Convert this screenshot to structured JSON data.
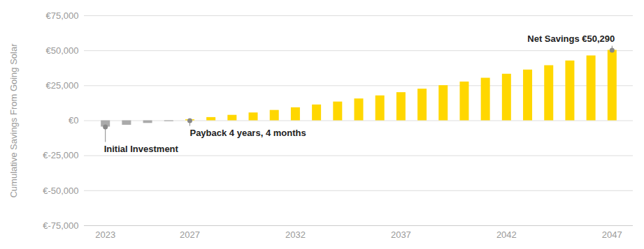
{
  "chart_data": {
    "type": "bar",
    "y_label": "Cumulative Savings From Going Solar",
    "x": [
      2023,
      2024,
      2025,
      2026,
      2027,
      2028,
      2029,
      2030,
      2031,
      2032,
      2033,
      2034,
      2035,
      2036,
      2037,
      2038,
      2039,
      2040,
      2041,
      2042,
      2043,
      2044,
      2045,
      2046,
      2047
    ],
    "values": [
      -4500,
      -3200,
      -1900,
      -600,
      700,
      2300,
      3900,
      5600,
      7400,
      9300,
      11300,
      13400,
      15600,
      17800,
      20100,
      22600,
      25100,
      27700,
      30400,
      33300,
      36300,
      39400,
      42700,
      46400,
      50290
    ],
    "colors": [
      "#aaaaaa",
      "#aaaaaa",
      "#aaaaaa",
      "#aaaaaa",
      "#ffd700",
      "#ffd700",
      "#ffd700",
      "#ffd700",
      "#ffd700",
      "#ffd700",
      "#ffd700",
      "#ffd700",
      "#ffd700",
      "#ffd700",
      "#ffd700",
      "#ffd700",
      "#ffd700",
      "#ffd700",
      "#ffd700",
      "#ffd700",
      "#ffd700",
      "#ffd700",
      "#ffd700",
      "#ffd700",
      "#ffd700"
    ],
    "xlim": [
      2022,
      2048
    ],
    "xticks": [
      2023,
      2027,
      2032,
      2037,
      2042,
      2047
    ],
    "ylim": [
      -75000,
      75000
    ],
    "yticks": [
      {
        "value": -75000,
        "label": "€-75,000"
      },
      {
        "value": -50000,
        "label": "€-50,000"
      },
      {
        "value": -25000,
        "label": "€-25,000"
      },
      {
        "value": 0,
        "label": "€0"
      },
      {
        "value": 25000,
        "label": "€25,000"
      },
      {
        "value": 50000,
        "label": "€50,000"
      },
      {
        "value": 75000,
        "label": "€75,000"
      }
    ],
    "grid": true,
    "annotations": [
      {
        "text": "Initial Investment",
        "x": 2023,
        "y": -4500
      },
      {
        "text": "Payback 4 years, 4 months",
        "x": 2027,
        "y": 0
      },
      {
        "text": "Net Savings €50,290",
        "x": 2047,
        "y": 50290
      }
    ]
  }
}
